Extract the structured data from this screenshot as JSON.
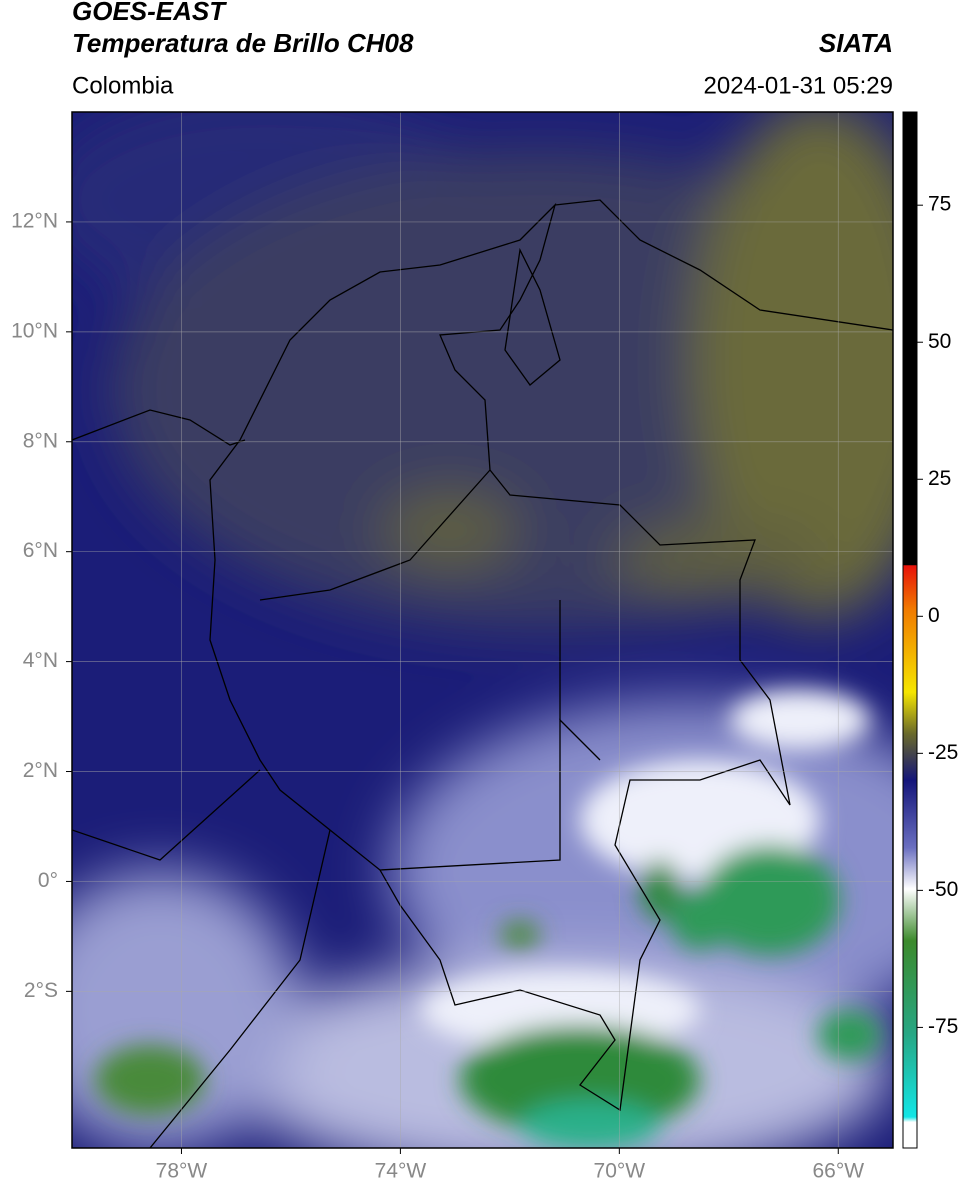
{
  "header": {
    "title": "GOES-EAST",
    "subtitle": "Temperatura de Brillo CH08",
    "source": "SIATA",
    "region": "Colombia",
    "timestamp": "2024-01-31 05:29"
  },
  "map": {
    "xlim": [
      -80,
      -65
    ],
    "ylim": [
      -4.85,
      14
    ],
    "grid": true,
    "xticks": [
      {
        "value": -78,
        "label": "78°W"
      },
      {
        "value": -74,
        "label": "74°W"
      },
      {
        "value": -70,
        "label": "70°W"
      },
      {
        "value": -66,
        "label": "66°W"
      }
    ],
    "yticks": [
      {
        "value": 12,
        "label": "12°N"
      },
      {
        "value": 10,
        "label": "10°N"
      },
      {
        "value": 8,
        "label": "8°N"
      },
      {
        "value": 6,
        "label": "6°N"
      },
      {
        "value": 4,
        "label": "4°N"
      },
      {
        "value": 2,
        "label": "2°N"
      },
      {
        "value": 0,
        "label": "0°"
      },
      {
        "value": -2,
        "label": "2°S"
      }
    ]
  },
  "colorbar": {
    "ylim": [
      -97,
      92
    ],
    "yticks": [
      75,
      50,
      25,
      0,
      -25,
      -50,
      -75
    ]
  }
}
